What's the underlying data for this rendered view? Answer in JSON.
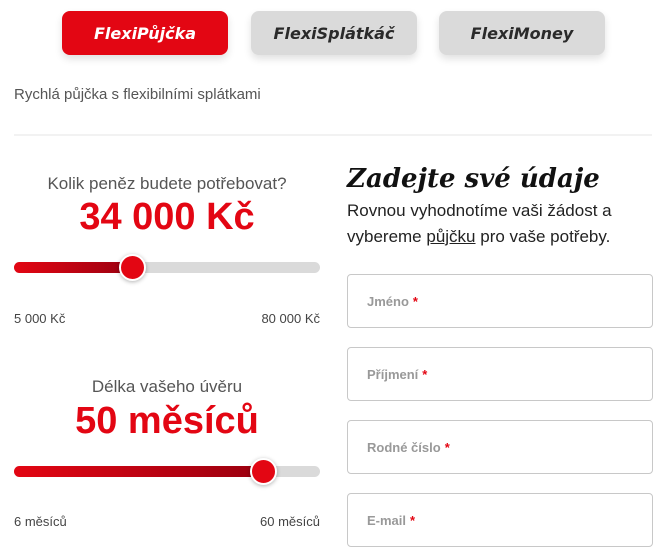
{
  "tabs": [
    {
      "label": "FlexiPůjčka",
      "active": true
    },
    {
      "label": "FlexiSplátkáč",
      "active": false
    },
    {
      "label": "FlexiMoney",
      "active": false
    }
  ],
  "subtitle": "Rychlá půjčka s flexibilními splátkami",
  "amount": {
    "question": "Kolik peněz budete potřebovat?",
    "value_label": "34 000 Kč",
    "value": 34000,
    "min": 5000,
    "max": 80000,
    "min_label": "5 000 Kč",
    "max_label": "80 000 Kč"
  },
  "term": {
    "question": "Délka vašeho úvěru",
    "value_label": "50 měsíců",
    "value": 50,
    "min": 6,
    "max": 60,
    "min_label": "6 měsíců",
    "max_label": "60 měsíců"
  },
  "form": {
    "title": "Zadejte své údaje",
    "lead_before": "Rovnou vyhodnotíme vaši žádost a vybereme ",
    "lead_link": "půjčku",
    "lead_after": " pro vaše potřeby.",
    "fields": [
      {
        "label": "Jméno",
        "required": "*"
      },
      {
        "label": "Příjmení",
        "required": "*"
      },
      {
        "label": "Rodné číslo",
        "required": "*"
      },
      {
        "label": "E-mail",
        "required": "*"
      }
    ]
  },
  "colors": {
    "accent": "#e30613",
    "tab_inactive": "#dadada"
  }
}
